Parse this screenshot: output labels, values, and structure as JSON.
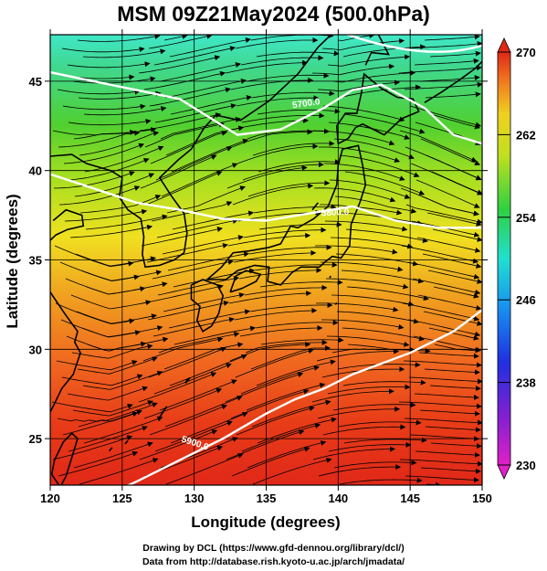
{
  "title": "MSM 09Z21May2024 (500.0hPa)",
  "x_axis": {
    "label": "Longitude (degrees)",
    "range": [
      120,
      150
    ],
    "ticks": [
      "120",
      "125",
      "130",
      "135",
      "140",
      "145",
      "150"
    ]
  },
  "y_axis": {
    "label": "Latitude  (degrees)",
    "range": [
      22.4,
      47.6
    ],
    "ticks": [
      "25",
      "30",
      "35",
      "40",
      "45"
    ]
  },
  "colorbar": {
    "min": 230,
    "max": 270,
    "ticks": [
      "230",
      "238",
      "246",
      "254",
      "262",
      "270"
    ]
  },
  "contours": [
    {
      "label": "5700.0"
    },
    {
      "label": "5800.0"
    },
    {
      "label": "5900.0"
    }
  ],
  "credits": {
    "line1": "Drawing by DCL (https://www.gfd-dennou.org/library/dcl/)",
    "line2": "Data from http://database.rish.kyoto-u.ac.jp/arch/jmadata/"
  },
  "colors": {
    "warm": "#e02818",
    "orange": "#f07820",
    "yellow": "#f0d020",
    "green": "#40c820",
    "cyan": "#30e0c0",
    "contour": "#ffffff"
  }
}
